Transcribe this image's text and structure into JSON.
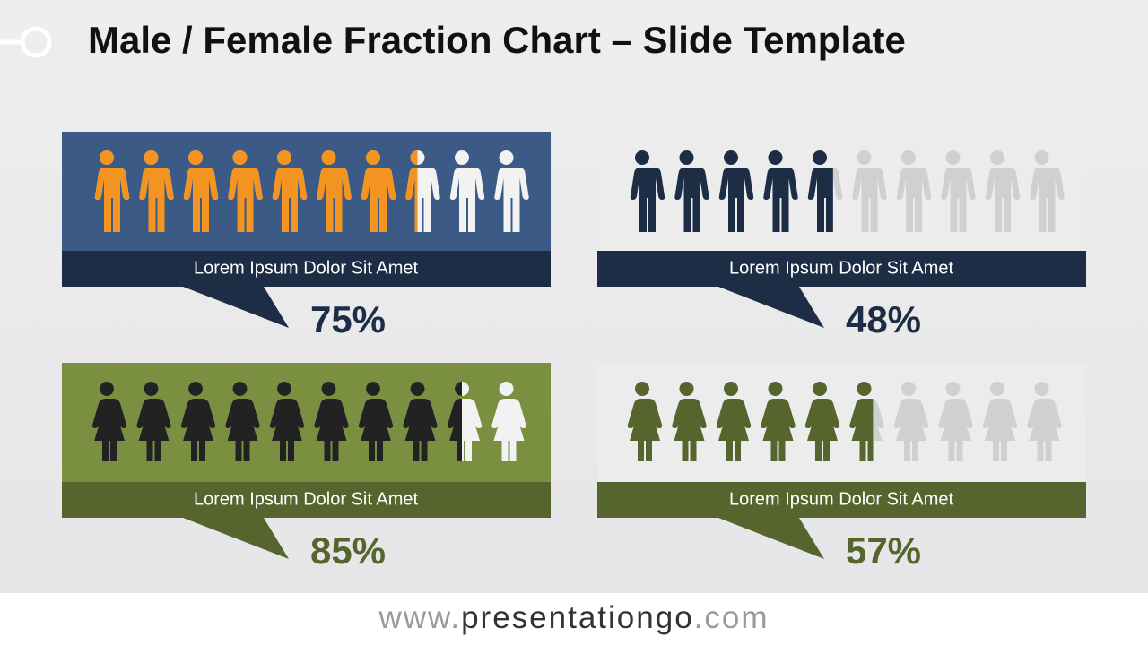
{
  "title": "Male / Female Fraction Chart – Slide Template",
  "footer": {
    "prefix": "www.",
    "brand": "presentationgo",
    "suffix": ".com"
  },
  "chart_data": [
    {
      "type": "pictograph",
      "icon": "male",
      "label": "Lorem Ipsum Dolor Sit Amet",
      "values": [
        75
      ],
      "value_labels": [
        "75%"
      ],
      "xlim": [
        0,
        100
      ],
      "color": "#f39420",
      "empty_color": "#f2f2f2",
      "background": "#3b5a85",
      "band_color": "#1d2d45",
      "value_color": "#1d2d45"
    },
    {
      "type": "pictograph",
      "icon": "male",
      "label": "Lorem Ipsum Dolor Sit Amet",
      "values": [
        48
      ],
      "value_labels": [
        "48%"
      ],
      "xlim": [
        0,
        100
      ],
      "color": "#1d2d45",
      "empty_color": "#d0d0d0",
      "background": "#ececec",
      "band_color": "#1d2d45",
      "value_color": "#1d2d45"
    },
    {
      "type": "pictograph",
      "icon": "female",
      "label": "Lorem Ipsum Dolor Sit Amet",
      "values": [
        85
      ],
      "value_labels": [
        "85%"
      ],
      "xlim": [
        0,
        100
      ],
      "color": "#222222",
      "empty_color": "#f2f2f2",
      "background": "#7a9040",
      "band_color": "#56642d",
      "value_color": "#56642d"
    },
    {
      "type": "pictograph",
      "icon": "female",
      "label": "Lorem Ipsum Dolor Sit Amet",
      "values": [
        57
      ],
      "value_labels": [
        "57%"
      ],
      "xlim": [
        0,
        100
      ],
      "color": "#56642d",
      "empty_color": "#d0d0d0",
      "background": "#ececec",
      "band_color": "#56642d",
      "value_color": "#56642d"
    }
  ]
}
